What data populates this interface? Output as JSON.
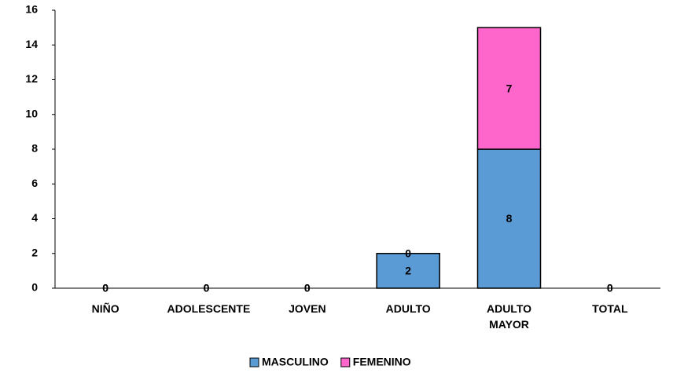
{
  "chart_data": {
    "type": "stacked_bar",
    "categories": [
      "NIÑO",
      "ADOLESCENTE",
      "JOVEN",
      "ADULTO",
      "ADULTO MAYOR",
      "TOTAL"
    ],
    "series": [
      {
        "name": "MASCULINO",
        "color": "#5b9bd5",
        "values": [
          0,
          0,
          0,
          2,
          8,
          0
        ]
      },
      {
        "name": "FEMENINO",
        "color": "#ff66cc",
        "values": [
          0,
          0,
          0,
          0,
          7,
          0
        ]
      }
    ],
    "ylim": [
      0,
      16
    ],
    "yticks": [
      0,
      2,
      4,
      6,
      8,
      10,
      12,
      14,
      16
    ],
    "grid": false,
    "legend": "bottom"
  }
}
